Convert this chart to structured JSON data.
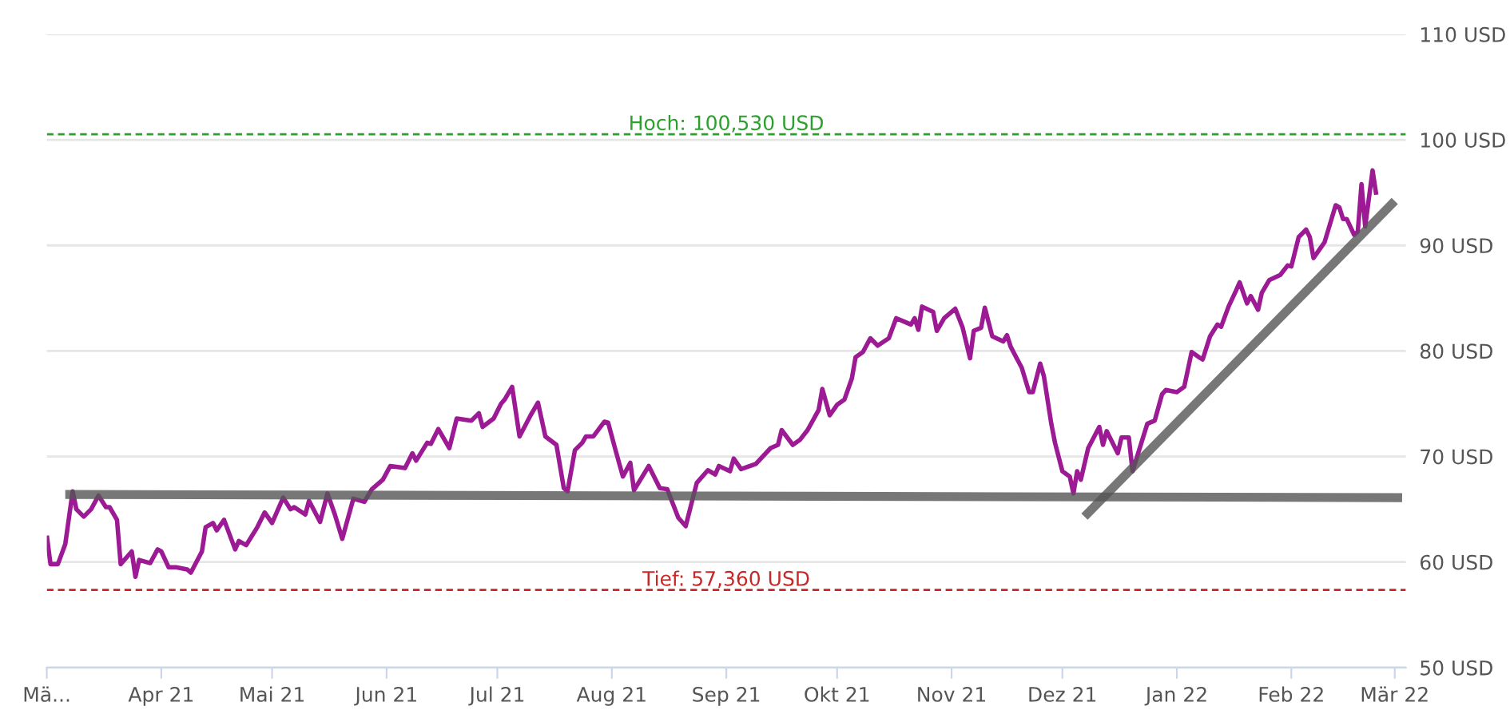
{
  "chart_data": {
    "type": "line",
    "xlim": [
      "2021-03-01",
      "2022-03-04"
    ],
    "xticks": [
      {
        "value": "2021-03-01",
        "label": "Mä..."
      },
      {
        "value": "2021-04-01",
        "label": "Apr 21"
      },
      {
        "value": "2021-05-01",
        "label": "Mai 21"
      },
      {
        "value": "2021-06-01",
        "label": "Jun 21"
      },
      {
        "value": "2021-07-01",
        "label": "Jul 21"
      },
      {
        "value": "2021-08-01",
        "label": "Aug 21"
      },
      {
        "value": "2021-09-01",
        "label": "Sep 21"
      },
      {
        "value": "2021-10-01",
        "label": "Okt 21"
      },
      {
        "value": "2021-11-01",
        "label": "Nov 21"
      },
      {
        "value": "2021-12-01",
        "label": "Dez 21"
      },
      {
        "value": "2022-01-01",
        "label": "Jan 22"
      },
      {
        "value": "2022-02-01",
        "label": "Feb 22"
      },
      {
        "value": "2022-03-01",
        "label": "Mär 22"
      }
    ],
    "ylim": [
      50,
      110
    ],
    "yticks": [
      {
        "value": 50,
        "label": "50 USD"
      },
      {
        "value": 60,
        "label": "60 USD"
      },
      {
        "value": 70,
        "label": "70 USD"
      },
      {
        "value": 80,
        "label": "80 USD"
      },
      {
        "value": 90,
        "label": "90 USD"
      },
      {
        "value": 100,
        "label": "100 USD"
      },
      {
        "value": 110,
        "label": "110 USD"
      }
    ],
    "grid": "y",
    "ref_lines": [
      {
        "axis": "y",
        "value": 100.53,
        "label": "Hoch: 100,530 USD",
        "color": "#2ca02c",
        "line_style": "dashed"
      },
      {
        "axis": "y",
        "value": 57.36,
        "label": "Tief: 57,360 USD",
        "color": "#c62828",
        "line_style": "dashed"
      }
    ],
    "series": [
      {
        "color": "#9c1a93",
        "x": [
          "2021-03-01",
          "2021-03-02",
          "2021-03-04",
          "2021-03-06",
          "2021-03-08",
          "2021-03-09",
          "2021-03-11",
          "2021-03-13",
          "2021-03-15",
          "2021-03-17",
          "2021-03-18",
          "2021-03-20",
          "2021-03-21",
          "2021-03-24",
          "2021-03-25",
          "2021-03-26",
          "2021-03-29",
          "2021-03-31",
          "2021-04-01",
          "2021-04-03",
          "2021-04-05",
          "2021-04-08",
          "2021-04-09",
          "2021-04-12",
          "2021-04-13",
          "2021-04-15",
          "2021-04-16",
          "2021-04-18",
          "2021-04-21",
          "2021-04-22",
          "2021-04-24",
          "2021-04-27",
          "2021-04-29",
          "2021-05-01",
          "2021-05-04",
          "2021-05-06",
          "2021-05-07",
          "2021-05-10",
          "2021-05-11",
          "2021-05-14",
          "2021-05-16",
          "2021-05-18",
          "2021-05-20",
          "2021-05-23",
          "2021-05-26",
          "2021-05-28",
          "2021-05-31",
          "2021-06-02",
          "2021-06-06",
          "2021-06-08",
          "2021-06-09",
          "2021-06-12",
          "2021-06-13",
          "2021-06-15",
          "2021-06-18",
          "2021-06-20",
          "2021-06-24",
          "2021-06-26",
          "2021-06-27",
          "2021-06-30",
          "2021-07-02",
          "2021-07-03",
          "2021-07-05",
          "2021-07-07",
          "2021-07-10",
          "2021-07-12",
          "2021-07-14",
          "2021-07-17",
          "2021-07-19",
          "2021-07-20",
          "2021-07-22",
          "2021-07-24",
          "2021-07-25",
          "2021-07-27",
          "2021-07-30",
          "2021-07-31",
          "2021-08-02",
          "2021-08-04",
          "2021-08-06",
          "2021-08-07",
          "2021-08-11",
          "2021-08-14",
          "2021-08-16",
          "2021-08-19",
          "2021-08-21",
          "2021-08-24",
          "2021-08-27",
          "2021-08-29",
          "2021-08-30",
          "2021-09-02",
          "2021-09-03",
          "2021-09-05",
          "2021-09-09",
          "2021-09-13",
          "2021-09-15",
          "2021-09-16",
          "2021-09-19",
          "2021-09-21",
          "2021-09-23",
          "2021-09-26",
          "2021-09-27",
          "2021-09-29",
          "2021-10-01",
          "2021-10-03",
          "2021-10-05",
          "2021-10-06",
          "2021-10-08",
          "2021-10-10",
          "2021-10-12",
          "2021-10-15",
          "2021-10-17",
          "2021-10-19",
          "2021-10-21",
          "2021-10-22",
          "2021-10-23",
          "2021-10-24",
          "2021-10-27",
          "2021-10-28",
          "2021-10-30",
          "2021-11-02",
          "2021-11-04",
          "2021-11-06",
          "2021-11-07",
          "2021-11-09",
          "2021-11-10",
          "2021-11-12",
          "2021-11-15",
          "2021-11-16",
          "2021-11-17",
          "2021-11-20",
          "2021-11-22",
          "2021-11-23",
          "2021-11-25",
          "2021-11-26",
          "2021-11-28",
          "2021-11-29",
          "2021-12-01",
          "2021-12-03",
          "2021-12-04",
          "2021-12-05",
          "2021-12-06",
          "2021-12-08",
          "2021-12-11",
          "2021-12-12",
          "2021-12-13",
          "2021-12-16",
          "2021-12-17",
          "2021-12-19",
          "2021-12-20",
          "2021-12-24",
          "2021-12-26",
          "2021-12-28",
          "2021-12-29",
          "2022-01-01",
          "2022-01-03",
          "2022-01-05",
          "2022-01-07",
          "2022-01-08",
          "2022-01-10",
          "2022-01-12",
          "2022-01-13",
          "2022-01-15",
          "2022-01-17",
          "2022-01-18",
          "2022-01-20",
          "2022-01-21",
          "2022-01-23",
          "2022-01-24",
          "2022-01-26",
          "2022-01-29",
          "2022-01-31",
          "2022-02-01",
          "2022-02-03",
          "2022-02-05",
          "2022-02-06",
          "2022-02-07",
          "2022-02-09",
          "2022-02-10",
          "2022-02-13",
          "2022-02-14",
          "2022-02-15",
          "2022-02-16",
          "2022-02-18",
          "2022-02-19",
          "2022-02-20",
          "2022-02-21",
          "2022-02-23",
          "2022-02-24"
        ],
        "values": [
          62.5,
          59.8,
          59.8,
          61.7,
          66.7,
          65.0,
          64.3,
          65.0,
          66.3,
          65.2,
          65.2,
          64.0,
          59.8,
          61.0,
          58.6,
          60.2,
          59.9,
          61.2,
          61.0,
          59.5,
          59.5,
          59.3,
          59.0,
          61.0,
          63.3,
          63.7,
          63.0,
          64.0,
          61.2,
          62.0,
          61.6,
          63.3,
          64.7,
          63.7,
          66.1,
          65.0,
          65.2,
          64.5,
          65.8,
          63.8,
          66.5,
          64.5,
          62.2,
          66.0,
          65.7,
          66.9,
          67.8,
          69.1,
          68.9,
          70.3,
          69.6,
          71.3,
          71.2,
          72.6,
          70.8,
          73.6,
          73.4,
          74.1,
          72.8,
          73.6,
          75.0,
          75.4,
          76.6,
          71.9,
          73.9,
          75.1,
          71.9,
          71.1,
          67.0,
          66.7,
          70.6,
          71.3,
          71.9,
          71.9,
          73.3,
          73.2,
          70.6,
          68.1,
          69.4,
          66.8,
          69.1,
          67.0,
          66.9,
          64.2,
          63.4,
          67.5,
          68.7,
          68.3,
          69.1,
          68.6,
          69.8,
          68.8,
          69.3,
          70.8,
          71.1,
          72.5,
          71.1,
          71.6,
          72.5,
          74.4,
          76.4,
          73.9,
          74.9,
          75.4,
          77.4,
          79.4,
          79.9,
          81.2,
          80.5,
          81.2,
          83.1,
          82.8,
          82.5,
          83.1,
          82.0,
          84.2,
          83.7,
          81.9,
          83.1,
          84.0,
          82.2,
          79.3,
          81.9,
          82.2,
          84.1,
          81.4,
          80.9,
          81.5,
          80.4,
          78.4,
          76.1,
          76.1,
          78.8,
          77.6,
          73.1,
          71.3,
          68.6,
          68.1,
          66.5,
          68.6,
          67.8,
          70.8,
          72.8,
          71.1,
          72.4,
          70.3,
          71.8,
          71.8,
          68.6,
          73.1,
          73.4,
          75.9,
          76.3,
          76.1,
          76.6,
          79.9,
          79.4,
          79.2,
          81.4,
          82.5,
          82.3,
          84.2,
          85.7,
          86.5,
          84.5,
          85.2,
          83.9,
          85.5,
          86.7,
          87.2,
          88.1,
          88.0,
          90.8,
          91.5,
          90.8,
          88.8,
          89.8,
          90.3,
          93.8,
          93.6,
          92.5,
          92.5,
          91.0,
          91.3,
          95.8,
          91.8,
          97.1,
          94.8
        ]
      },
      {
        "color": "#555555",
        "x": [
          "2021-03-06",
          "2022-03-03"
        ],
        "values": [
          66.4,
          66.1
        ]
      },
      {
        "color": "#555555",
        "x": [
          "2021-12-07",
          "2022-03-01"
        ],
        "values": [
          64.3,
          94.2
        ]
      }
    ]
  }
}
